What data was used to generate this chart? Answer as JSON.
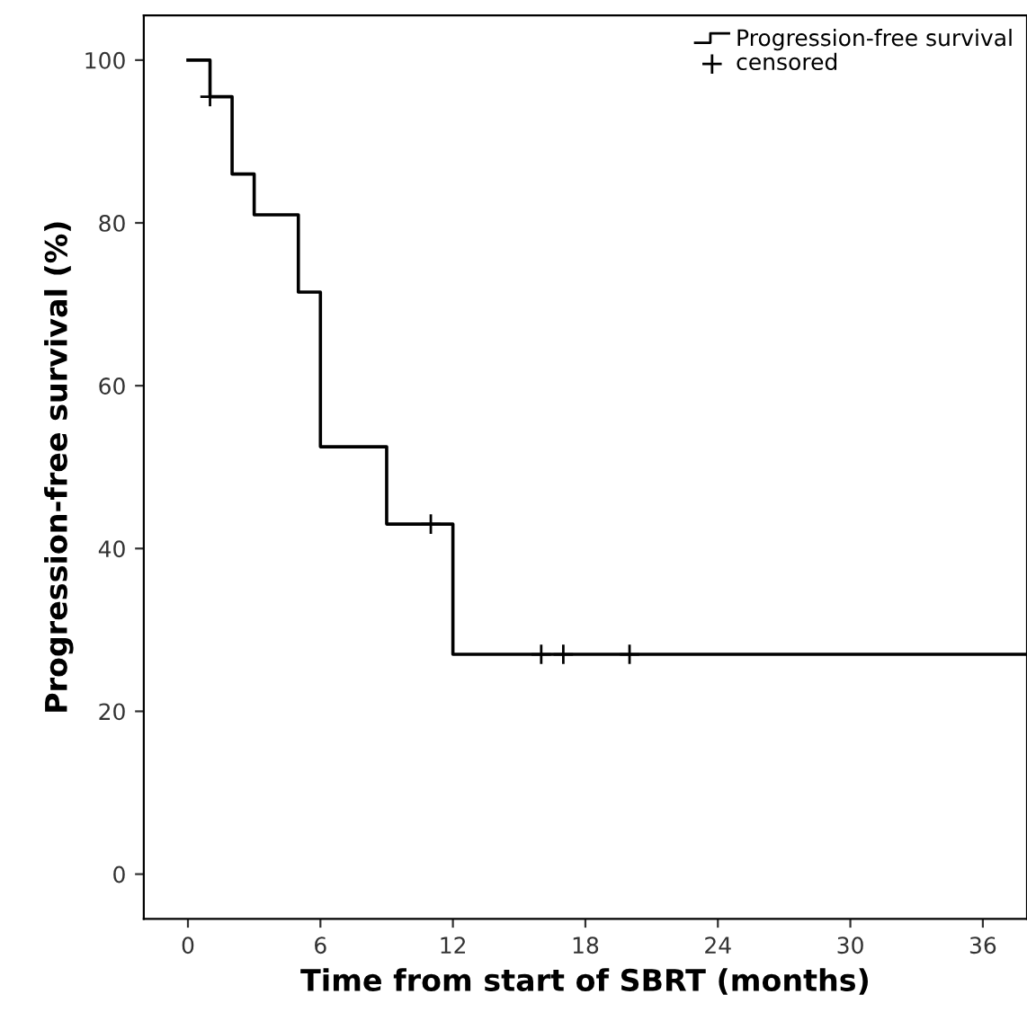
{
  "chart_data": {
    "type": "step",
    "xlabel": "Time from start of SBRT (months)",
    "ylabel": "Progression-free survival (%)",
    "xlim": [
      -2,
      38
    ],
    "xticks": [
      0,
      6,
      12,
      18,
      24,
      30,
      36
    ],
    "ylim": [
      -5.5,
      105.5
    ],
    "yticks": [
      0,
      20,
      40,
      60,
      80,
      100
    ],
    "grid": false,
    "legend": "top right",
    "series": [
      {
        "name": "Progression-free survival",
        "color": "#000000",
        "marker": "none",
        "x": [
          0,
          1,
          2,
          3,
          5,
          6,
          9,
          12,
          38
        ],
        "values": [
          100,
          95.5,
          86,
          81,
          71.5,
          52.5,
          43,
          27,
          27
        ]
      },
      {
        "name": "censored",
        "type": "scatter",
        "color": "#000000",
        "marker": "cross",
        "x": [
          1,
          11,
          16,
          17,
          20
        ],
        "values": [
          95.5,
          43,
          27,
          27,
          27
        ]
      }
    ]
  }
}
